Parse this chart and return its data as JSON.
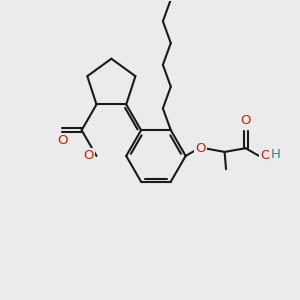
{
  "bg": "#ebebeb",
  "bc": "#1a1a1a",
  "oc": "#cc2200",
  "hc": "#2d8a8a",
  "lw": 1.5,
  "fs": 9.5,
  "xlim": [
    0,
    10
  ],
  "ylim": [
    0,
    10
  ]
}
